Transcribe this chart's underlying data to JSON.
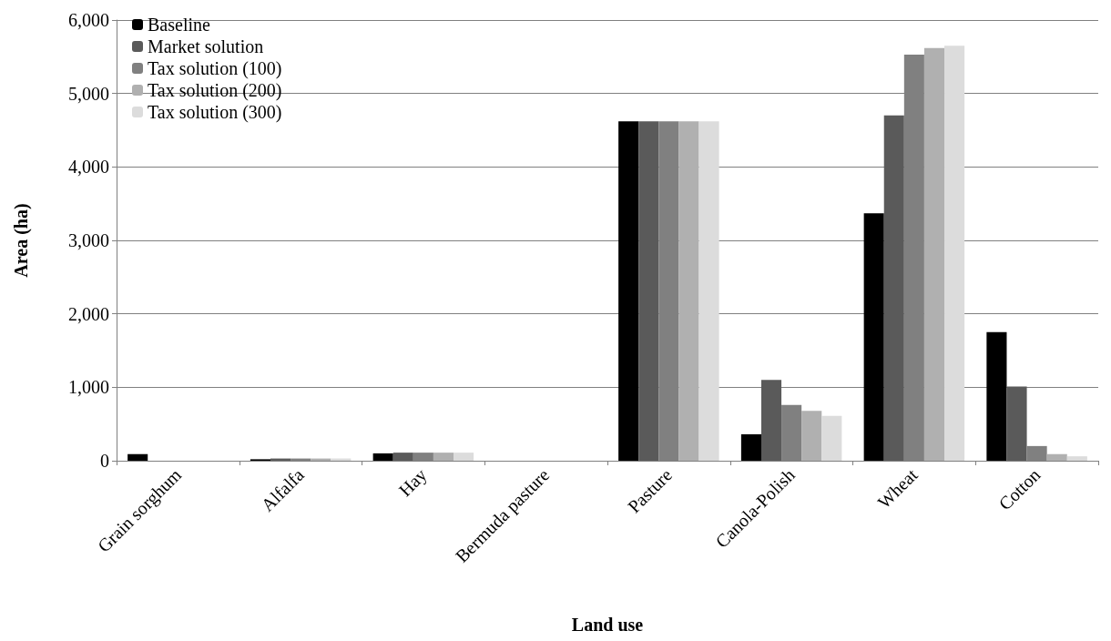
{
  "chart_data": {
    "type": "bar",
    "xlabel": "Land use",
    "ylabel": "Area (ha)",
    "categories": [
      "Grain sorghum",
      "Alfalfa",
      "Hay",
      "Bermuda pasture",
      "Pasture",
      "Canola-Polish",
      "Wheat",
      "Cotton"
    ],
    "series": [
      {
        "name": "Baseline",
        "color": "#000000",
        "values": [
          90,
          20,
          100,
          0,
          4620,
          360,
          3370,
          1750
        ]
      },
      {
        "name": "Market solution",
        "color": "#5a5a5a",
        "values": [
          0,
          30,
          110,
          0,
          4620,
          1100,
          4700,
          1010
        ]
      },
      {
        "name": "Tax solution (100)",
        "color": "#808080",
        "values": [
          0,
          30,
          110,
          0,
          4620,
          760,
          5530,
          200
        ]
      },
      {
        "name": "Tax solution (200)",
        "color": "#b0b0b0",
        "values": [
          0,
          30,
          110,
          0,
          4620,
          680,
          5620,
          90
        ]
      },
      {
        "name": "Tax solution (300)",
        "color": "#dcdcdc",
        "values": [
          0,
          30,
          110,
          0,
          4620,
          610,
          5650,
          60
        ]
      }
    ],
    "ylim": [
      0,
      6000
    ],
    "yticks": [
      0,
      {
        "value": 1000,
        "label": "1,000"
      },
      {
        "value": 2000,
        "label": "2,000"
      },
      {
        "value": 3000,
        "label": "3,000"
      },
      {
        "value": 4000,
        "label": "4,000"
      },
      {
        "value": 5000,
        "label": "5,000"
      },
      {
        "value": 6000,
        "label": "6,000"
      }
    ],
    "grid": "y",
    "legend": "top left"
  }
}
